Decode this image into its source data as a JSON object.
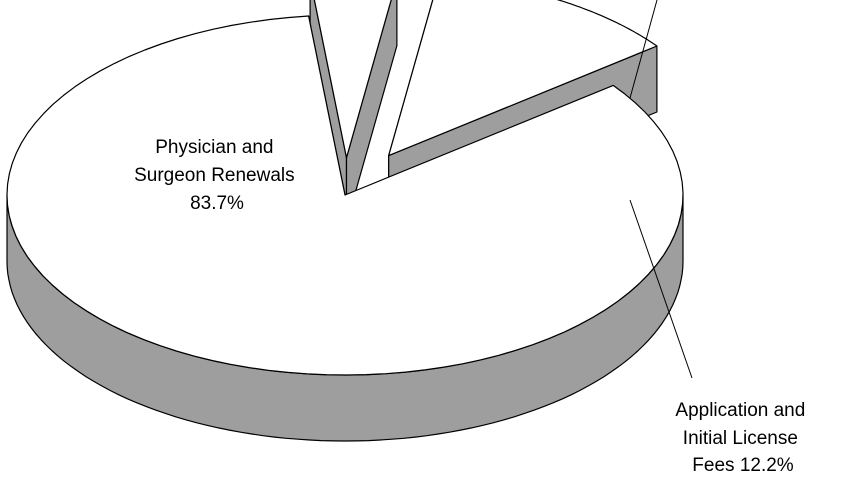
{
  "chart_data": {
    "type": "pie",
    "style": "3d-exploded",
    "title": "",
    "slices": [
      {
        "label_lines": [
          "Physician and",
          "Surgeon Renewals",
          "83.7%"
        ],
        "value": 83.7,
        "unit": "%"
      },
      {
        "label_lines": [],
        "value": 4.1,
        "unit": "%"
      },
      {
        "label_lines": [
          "Application and",
          "Initial License",
          "Fees 12.2%"
        ],
        "value": 12.2,
        "unit": "%"
      }
    ]
  },
  "colors": {
    "top": "#ffffff",
    "side": "#9e9e9e",
    "outline": "#000000"
  }
}
